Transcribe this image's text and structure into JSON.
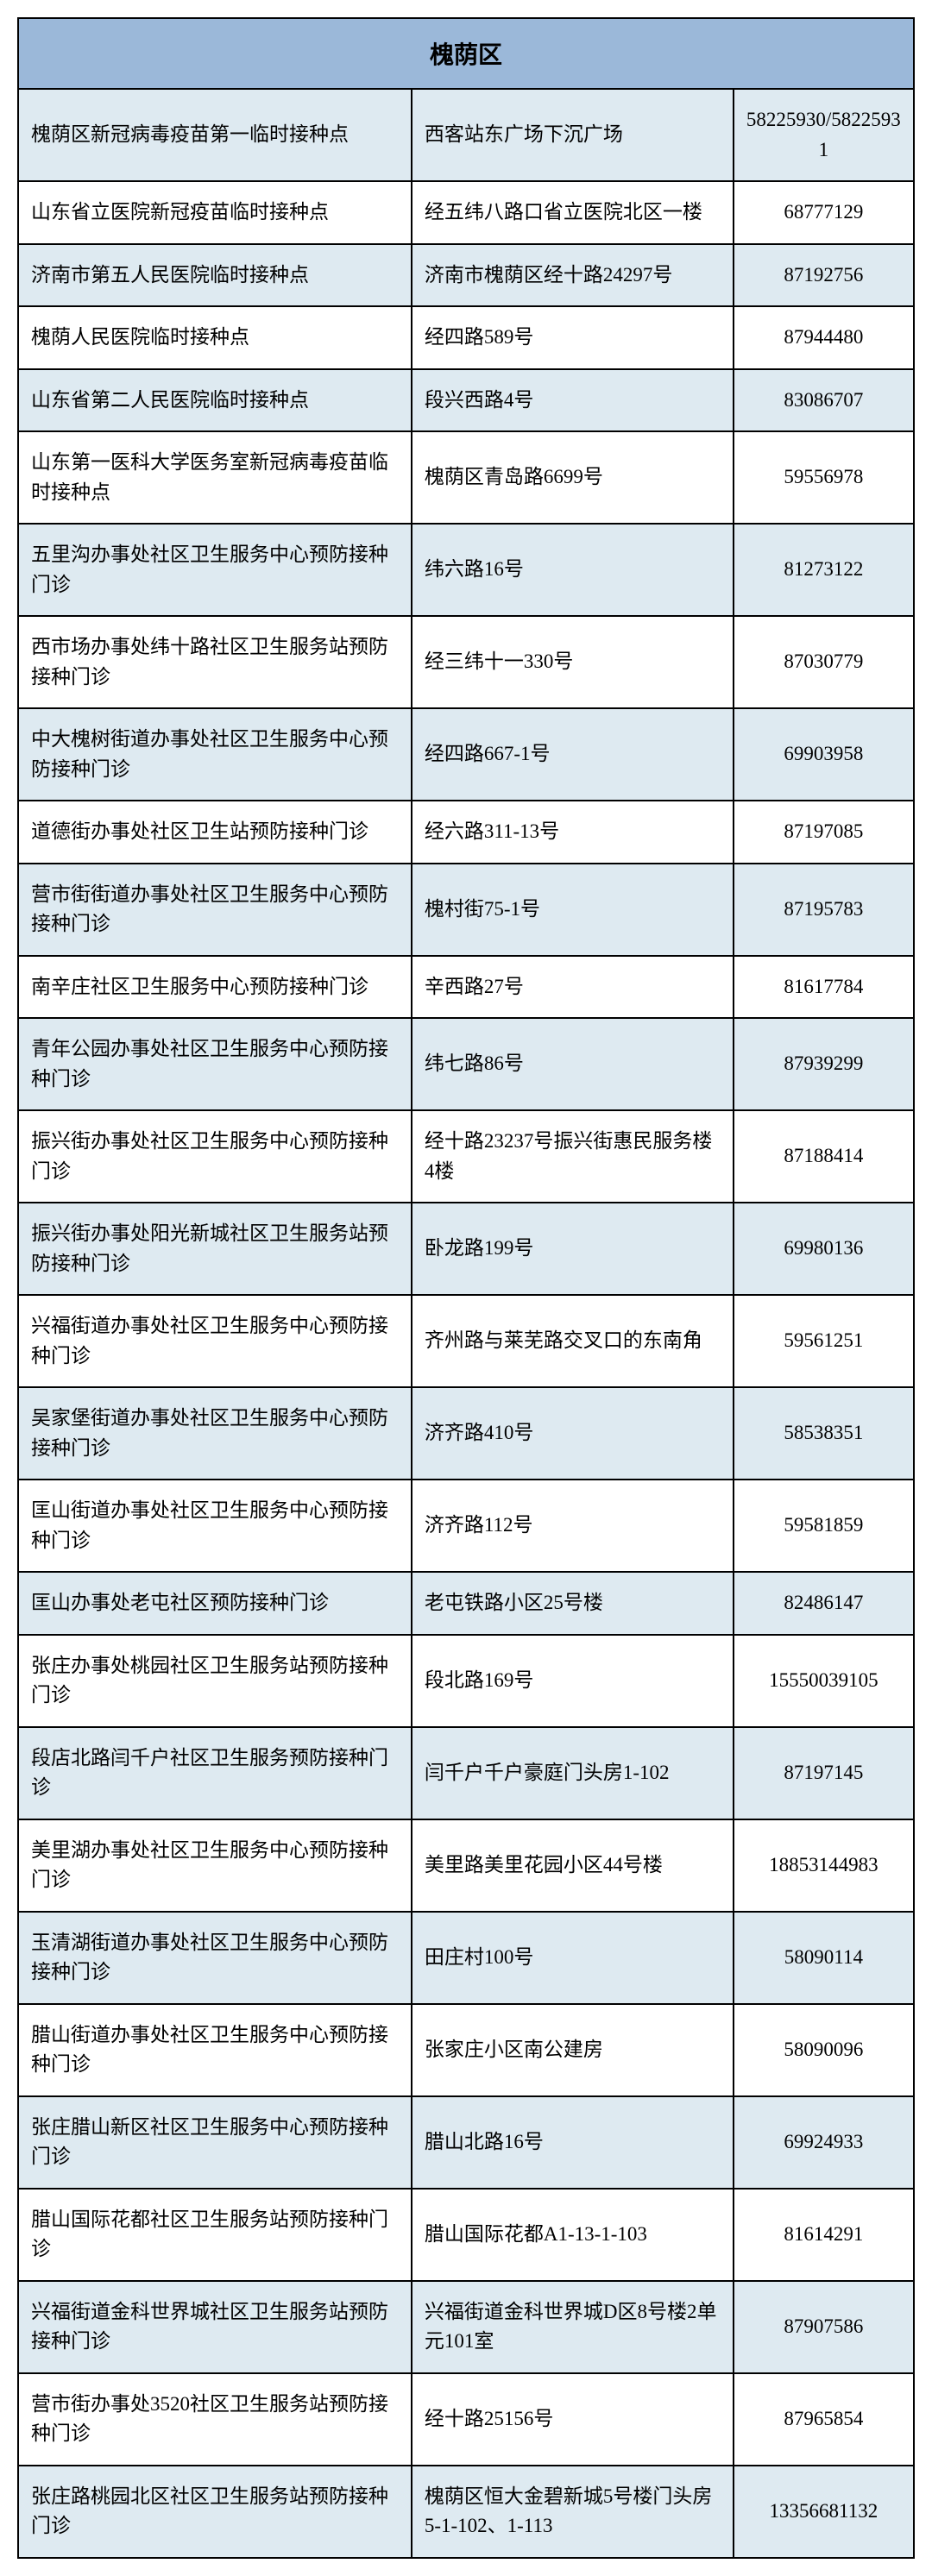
{
  "table": {
    "header": "槐荫区",
    "header_bg": "#9bb8d9",
    "even_row_bg": "#deeaf1",
    "odd_row_bg": "#ffffff",
    "border_color": "#000000",
    "columns": [
      "name",
      "address",
      "phone"
    ],
    "rows": [
      {
        "name": "槐荫区新冠病毒疫苗第一临时接种点",
        "address": "西客站东广场下沉广场",
        "phone": "58225930/58225931"
      },
      {
        "name": "山东省立医院新冠疫苗临时接种点",
        "address": "经五纬八路口省立医院北区一楼",
        "phone": "68777129"
      },
      {
        "name": "济南市第五人民医院临时接种点",
        "address": "济南市槐荫区经十路24297号",
        "phone": "87192756"
      },
      {
        "name": "槐荫人民医院临时接种点",
        "address": "经四路589号",
        "phone": "87944480"
      },
      {
        "name": "山东省第二人民医院临时接种点",
        "address": "段兴西路4号",
        "phone": "83086707"
      },
      {
        "name": "山东第一医科大学医务室新冠病毒疫苗临时接种点",
        "address": "槐荫区青岛路6699号",
        "phone": "59556978"
      },
      {
        "name": "五里沟办事处社区卫生服务中心预防接种门诊",
        "address": "纬六路16号",
        "phone": "81273122"
      },
      {
        "name": "西市场办事处纬十路社区卫生服务站预防接种门诊",
        "address": "经三纬十一330号",
        "phone": "87030779"
      },
      {
        "name": "中大槐树街道办事处社区卫生服务中心预防接种门诊",
        "address": "经四路667-1号",
        "phone": "69903958"
      },
      {
        "name": "道德街办事处社区卫生站预防接种门诊",
        "address": "经六路311-13号",
        "phone": "87197085"
      },
      {
        "name": "营市街街道办事处社区卫生服务中心预防接种门诊",
        "address": "槐村街75-1号",
        "phone": "87195783"
      },
      {
        "name": "南辛庄社区卫生服务中心预防接种门诊",
        "address": "辛西路27号",
        "phone": "81617784"
      },
      {
        "name": "青年公园办事处社区卫生服务中心预防接种门诊",
        "address": "纬七路86号",
        "phone": "87939299"
      },
      {
        "name": "振兴街办事处社区卫生服务中心预防接种门诊",
        "address": "经十路23237号振兴街惠民服务楼4楼",
        "phone": "87188414"
      },
      {
        "name": "振兴街办事处阳光新城社区卫生服务站预防接种门诊",
        "address": "卧龙路199号",
        "phone": "69980136"
      },
      {
        "name": "兴福街道办事处社区卫生服务中心预防接种门诊",
        "address": "齐州路与莱芜路交叉口的东南角",
        "phone": "59561251"
      },
      {
        "name": "吴家堡街道办事处社区卫生服务中心预防接种门诊",
        "address": "济齐路410号",
        "phone": "58538351"
      },
      {
        "name": "匡山街道办事处社区卫生服务中心预防接种门诊",
        "address": "济齐路112号",
        "phone": "59581859"
      },
      {
        "name": "匡山办事处老屯社区预防接种门诊",
        "address": "老屯铁路小区25号楼",
        "phone": "82486147"
      },
      {
        "name": "张庄办事处桃园社区卫生服务站预防接种门诊",
        "address": "段北路169号",
        "phone": "15550039105"
      },
      {
        "name": "段店北路闫千户社区卫生服务预防接种门诊",
        "address": "闫千户千户豪庭门头房1-102",
        "phone": "87197145"
      },
      {
        "name": "美里湖办事处社区卫生服务中心预防接种门诊",
        "address": "美里路美里花园小区44号楼",
        "phone": "18853144983"
      },
      {
        "name": "玉清湖街道办事处社区卫生服务中心预防接种门诊",
        "address": "田庄村100号",
        "phone": "58090114"
      },
      {
        "name": "腊山街道办事处社区卫生服务中心预防接种门诊",
        "address": "张家庄小区南公建房",
        "phone": "58090096"
      },
      {
        "name": "张庄腊山新区社区卫生服务中心预防接种门诊",
        "address": "腊山北路16号",
        "phone": "69924933"
      },
      {
        "name": "腊山国际花都社区卫生服务站预防接种门诊",
        "address": "腊山国际花都A1-13-1-103",
        "phone": "81614291"
      },
      {
        "name": "兴福街道金科世界城社区卫生服务站预防接种门诊",
        "address": "兴福街道金科世界城D区8号楼2单元101室",
        "phone": "87907586"
      },
      {
        "name": "营市街办事处3520社区卫生服务站预防接种门诊",
        "address": "经十路25156号",
        "phone": "87965854"
      },
      {
        "name": "张庄路桃园北区社区卫生服务站预防接种门诊",
        "address": "槐荫区恒大金碧新城5号楼门头房5-1-102、1-113",
        "phone": "13356681132"
      }
    ]
  }
}
